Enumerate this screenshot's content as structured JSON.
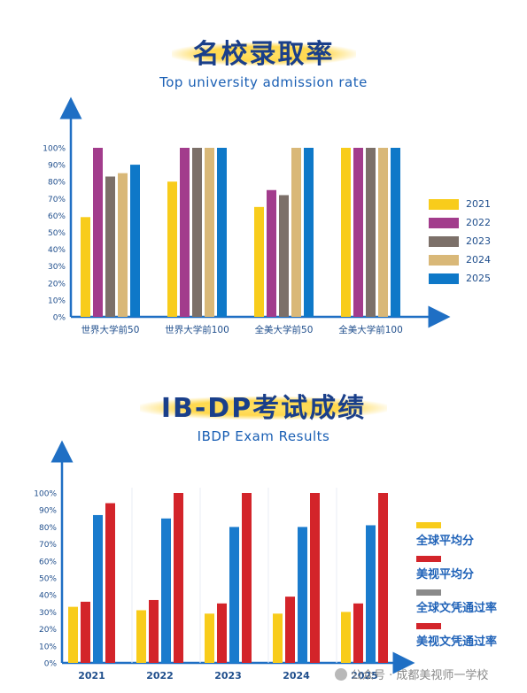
{
  "chart1": {
    "title_cn": "名校录取率",
    "title_en": "Top university admission rate"
  },
  "chart2": {
    "title_cn": "IB-DP考试成绩",
    "title_en": "IBDP Exam Results"
  },
  "watermark": "公众号 · 成都美视师一学校",
  "colors": {
    "title": "#1a3f8a",
    "axis": "#1f6fc4",
    "label": "#1f4e8c",
    "c2021": "#f8cc1b",
    "c2022": "#a23c8c",
    "c2023": "#7c7069",
    "c2024": "#d9b878",
    "c2025": "#0e78c8",
    "ib_yellow": "#f8cc1b",
    "ib_red": "#d3242a",
    "ib_gray": "#8a8a8a",
    "ib_blue": "#1a7bcd"
  },
  "chart_data": [
    {
      "type": "bar",
      "title": "名校录取率",
      "subtitle": "Top university admission rate",
      "categories": [
        "世界大学前50",
        "世界大学前100",
        "全美大学前50",
        "全美大学前100"
      ],
      "yticks": [
        "0%",
        "10%",
        "20%",
        "30%",
        "40%",
        "50%",
        "60%",
        "70%",
        "80%",
        "90%",
        "100%"
      ],
      "ylim": [
        0,
        100
      ],
      "grid": false,
      "legend_position": "right",
      "series": [
        {
          "name": "2021",
          "color": "#f8cc1b",
          "values": [
            59,
            80,
            65,
            100
          ]
        },
        {
          "name": "2022",
          "color": "#a23c8c",
          "values": [
            100,
            100,
            75,
            100
          ]
        },
        {
          "name": "2023",
          "color": "#7c7069",
          "values": [
            83,
            100,
            72,
            100
          ]
        },
        {
          "name": "2024",
          "color": "#d9b878",
          "values": [
            85,
            100,
            100,
            100
          ]
        },
        {
          "name": "2025",
          "color": "#0e78c8",
          "values": [
            90,
            100,
            100,
            100
          ]
        }
      ]
    },
    {
      "type": "bar",
      "title": "IB-DP考试成绩",
      "subtitle": "IBDP Exam Results",
      "categories": [
        "2021",
        "2022",
        "2023",
        "2024",
        "2025"
      ],
      "yticks": [
        "0%",
        "10%",
        "20%",
        "30%",
        "40%",
        "50%",
        "60%",
        "70%",
        "80%",
        "90%",
        "100%"
      ],
      "ylim": [
        0,
        100
      ],
      "grid": false,
      "legend_position": "right",
      "series": [
        {
          "name": "全球平均分",
          "color": "#f8cc1b",
          "values": [
            33,
            31,
            29,
            29,
            30
          ]
        },
        {
          "name": "美视平均分",
          "color": "#d3242a",
          "values": [
            36,
            37,
            35,
            39,
            35
          ]
        },
        {
          "name": "全球文凭通过率",
          "color": "#1a7bcd",
          "values": [
            87,
            85,
            80,
            80,
            81
          ]
        },
        {
          "name": "美视文凭通过率",
          "color": "#d3242a",
          "values": [
            94,
            100,
            100,
            100,
            100
          ]
        }
      ],
      "legend_swatch_colors": [
        "#f8cc1b",
        "#d3242a",
        "#8a8a8a",
        "#d3242a"
      ],
      "bar_order": [
        0,
        1,
        2,
        3
      ]
    }
  ]
}
